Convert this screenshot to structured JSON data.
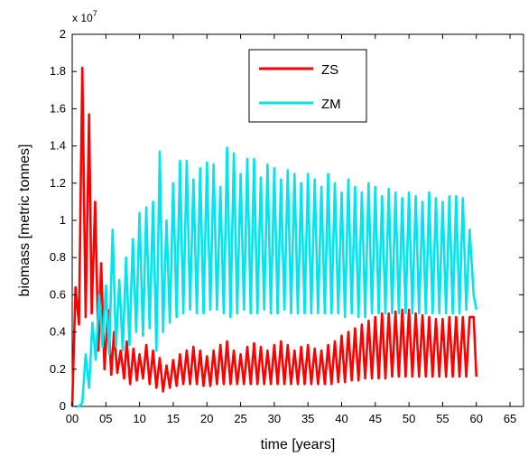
{
  "chart_data": {
    "type": "line",
    "xlabel": "time [years]",
    "ylabel": "biomass [metric tonnes]",
    "y_multiplier": "x 10",
    "y_multiplier_exp": "7",
    "xlim": [
      0,
      67
    ],
    "ylim": [
      0,
      2
    ],
    "x_ticks": [
      0,
      5,
      10,
      15,
      20,
      25,
      30,
      35,
      40,
      45,
      50,
      55,
      60,
      65
    ],
    "x_tick_labels": [
      "00",
      "05",
      "10",
      "15",
      "20",
      "25",
      "30",
      "35",
      "40",
      "45",
      "50",
      "55",
      "60",
      "65"
    ],
    "y_ticks": [
      0,
      0.2,
      0.4,
      0.6,
      0.8,
      1,
      1.2,
      1.4,
      1.6,
      1.8,
      2
    ],
    "y_tick_labels": [
      "0",
      "0.2",
      "0.4",
      "0.6",
      "0.8",
      "1",
      "1.2",
      "1.4",
      "1.6",
      "1.8",
      "2"
    ],
    "legend_position": "top-center",
    "grid": false,
    "series": [
      {
        "name": "ZS",
        "color": "#ff0000",
        "peaks": [
          [
            0.5,
            0.64
          ],
          [
            1.5,
            1.82
          ],
          [
            2.5,
            1.57
          ],
          [
            3.4,
            1.1
          ],
          [
            4.3,
            0.77
          ],
          [
            5.3,
            0.52
          ],
          [
            6.2,
            0.4
          ],
          [
            7.2,
            0.3
          ],
          [
            8.1,
            0.35
          ],
          [
            9.1,
            0.31
          ],
          [
            10,
            0.28
          ],
          [
            11,
            0.33
          ],
          [
            12,
            0.3
          ],
          [
            13,
            0.26
          ],
          [
            14,
            0.22
          ],
          [
            15,
            0.25
          ],
          [
            16,
            0.28
          ],
          [
            17,
            0.3
          ],
          [
            18,
            0.32
          ],
          [
            19,
            0.3
          ],
          [
            20,
            0.27
          ],
          [
            21,
            0.3
          ],
          [
            22,
            0.33
          ],
          [
            23,
            0.35
          ],
          [
            24,
            0.3
          ],
          [
            25,
            0.28
          ],
          [
            26,
            0.32
          ],
          [
            27,
            0.34
          ],
          [
            28,
            0.32
          ],
          [
            29,
            0.3
          ],
          [
            30,
            0.33
          ],
          [
            31,
            0.35
          ],
          [
            32,
            0.33
          ],
          [
            33,
            0.3
          ],
          [
            34,
            0.32
          ],
          [
            35,
            0.33
          ],
          [
            36,
            0.31
          ],
          [
            37,
            0.3
          ],
          [
            38,
            0.33
          ],
          [
            39,
            0.35
          ],
          [
            40,
            0.38
          ],
          [
            41,
            0.4
          ],
          [
            42,
            0.42
          ],
          [
            43,
            0.44
          ],
          [
            44,
            0.46
          ],
          [
            45,
            0.48
          ],
          [
            46,
            0.5
          ],
          [
            47,
            0.5
          ],
          [
            48,
            0.51
          ],
          [
            49,
            0.52
          ],
          [
            50,
            0.52
          ],
          [
            51,
            0.5
          ],
          [
            52,
            0.49
          ],
          [
            53,
            0.48
          ],
          [
            54,
            0.47
          ],
          [
            55,
            0.47
          ],
          [
            56,
            0.48
          ],
          [
            57,
            0.48
          ],
          [
            58,
            0.48
          ],
          [
            59,
            0.48
          ],
          [
            59.6,
            0.48
          ]
        ],
        "troughs": [
          [
            0,
            0
          ],
          [
            1,
            0.44
          ],
          [
            2,
            0.48
          ],
          [
            2.9,
            0.5
          ],
          [
            3.9,
            0.3
          ],
          [
            4.8,
            0.2
          ],
          [
            5.8,
            0.17
          ],
          [
            6.7,
            0.18
          ],
          [
            7.7,
            0.15
          ],
          [
            8.6,
            0.12
          ],
          [
            9.6,
            0.14
          ],
          [
            10.5,
            0.15
          ],
          [
            11.5,
            0.12
          ],
          [
            12.5,
            0.1
          ],
          [
            13.5,
            0.08
          ],
          [
            14.5,
            0.1
          ],
          [
            15.5,
            0.11
          ],
          [
            16.5,
            0.12
          ],
          [
            17.5,
            0.12
          ],
          [
            18.5,
            0.12
          ],
          [
            19.5,
            0.11
          ],
          [
            20.5,
            0.11
          ],
          [
            21.5,
            0.12
          ],
          [
            22.5,
            0.12
          ],
          [
            23.5,
            0.12
          ],
          [
            24.5,
            0.12
          ],
          [
            25.5,
            0.12
          ],
          [
            26.5,
            0.12
          ],
          [
            27.5,
            0.12
          ],
          [
            28.5,
            0.12
          ],
          [
            29.5,
            0.12
          ],
          [
            30.5,
            0.12
          ],
          [
            31.5,
            0.12
          ],
          [
            32.5,
            0.12
          ],
          [
            33.5,
            0.12
          ],
          [
            34.5,
            0.12
          ],
          [
            35.5,
            0.12
          ],
          [
            36.5,
            0.12
          ],
          [
            37.5,
            0.12
          ],
          [
            38.5,
            0.12
          ],
          [
            39.5,
            0.13
          ],
          [
            40.5,
            0.13
          ],
          [
            41.5,
            0.14
          ],
          [
            42.5,
            0.14
          ],
          [
            43.5,
            0.15
          ],
          [
            44.5,
            0.15
          ],
          [
            45.5,
            0.15
          ],
          [
            46.5,
            0.15
          ],
          [
            47.5,
            0.16
          ],
          [
            48.5,
            0.16
          ],
          [
            49.5,
            0.16
          ],
          [
            50.5,
            0.16
          ],
          [
            51.5,
            0.16
          ],
          [
            52.5,
            0.16
          ],
          [
            53.5,
            0.16
          ],
          [
            54.5,
            0.16
          ],
          [
            55.5,
            0.16
          ],
          [
            56.5,
            0.16
          ],
          [
            57.5,
            0.16
          ],
          [
            58.5,
            0.16
          ],
          [
            60,
            0.16
          ]
        ]
      },
      {
        "name": "ZM",
        "color": "#00e5ee",
        "peaks": [
          [
            1,
            0
          ],
          [
            2,
            0.28
          ],
          [
            3,
            0.45
          ],
          [
            4,
            0.6
          ],
          [
            5,
            0.65
          ],
          [
            6,
            0.95
          ],
          [
            7,
            0.68
          ],
          [
            8,
            0.8
          ],
          [
            9,
            0.9
          ],
          [
            10,
            1.04
          ],
          [
            11,
            1.07
          ],
          [
            12,
            1.1
          ],
          [
            13,
            1.37
          ],
          [
            14,
            1.0
          ],
          [
            15,
            1.2
          ],
          [
            16,
            1.32
          ],
          [
            17,
            1.32
          ],
          [
            18,
            1.22
          ],
          [
            19,
            1.28
          ],
          [
            20,
            1.31
          ],
          [
            21,
            1.3
          ],
          [
            22,
            1.18
          ],
          [
            23,
            1.39
          ],
          [
            24,
            1.36
          ],
          [
            25,
            1.25
          ],
          [
            26,
            1.33
          ],
          [
            27,
            1.33
          ],
          [
            28,
            1.23
          ],
          [
            29,
            1.3
          ],
          [
            30,
            1.28
          ],
          [
            31,
            1.22
          ],
          [
            32,
            1.27
          ],
          [
            33,
            1.25
          ],
          [
            34,
            1.2
          ],
          [
            35,
            1.25
          ],
          [
            36,
            1.22
          ],
          [
            37,
            1.18
          ],
          [
            38,
            1.25
          ],
          [
            39,
            1.2
          ],
          [
            40,
            1.15
          ],
          [
            41,
            1.22
          ],
          [
            42,
            1.18
          ],
          [
            43,
            1.15
          ],
          [
            44,
            1.2
          ],
          [
            45,
            1.18
          ],
          [
            46,
            1.13
          ],
          [
            47,
            1.17
          ],
          [
            48,
            1.15
          ],
          [
            49,
            1.12
          ],
          [
            50,
            1.15
          ],
          [
            51,
            1.13
          ],
          [
            52,
            1.1
          ],
          [
            53,
            1.15
          ],
          [
            54,
            1.12
          ],
          [
            55,
            1.1
          ],
          [
            56,
            1.13
          ],
          [
            57,
            1.13
          ],
          [
            58,
            1.12
          ],
          [
            59,
            0.95
          ],
          [
            59.6,
            0.6
          ]
        ],
        "troughs": [
          [
            0.5,
            0
          ],
          [
            1.5,
            0.02
          ],
          [
            2.5,
            0.1
          ],
          [
            3.5,
            0.25
          ],
          [
            4.5,
            0.32
          ],
          [
            5.5,
            0.28
          ],
          [
            6.5,
            0.32
          ],
          [
            7.5,
            0.3
          ],
          [
            8.5,
            0.33
          ],
          [
            9.5,
            0.4
          ],
          [
            10.5,
            0.38
          ],
          [
            11.5,
            0.42
          ],
          [
            12.5,
            0.3
          ],
          [
            13.5,
            0.4
          ],
          [
            14.5,
            0.45
          ],
          [
            15.5,
            0.48
          ],
          [
            16.5,
            0.5
          ],
          [
            17.5,
            0.52
          ],
          [
            18.5,
            0.5
          ],
          [
            19.5,
            0.5
          ],
          [
            20.5,
            0.52
          ],
          [
            21.5,
            0.52
          ],
          [
            22.5,
            0.5
          ],
          [
            23.5,
            0.48
          ],
          [
            24.5,
            0.5
          ],
          [
            25.5,
            0.52
          ],
          [
            26.5,
            0.5
          ],
          [
            27.5,
            0.5
          ],
          [
            28.5,
            0.52
          ],
          [
            29.5,
            0.5
          ],
          [
            30.5,
            0.5
          ],
          [
            31.5,
            0.52
          ],
          [
            32.5,
            0.5
          ],
          [
            33.5,
            0.5
          ],
          [
            34.5,
            0.5
          ],
          [
            35.5,
            0.5
          ],
          [
            36.5,
            0.5
          ],
          [
            37.5,
            0.5
          ],
          [
            38.5,
            0.5
          ],
          [
            39.5,
            0.5
          ],
          [
            40.5,
            0.48
          ],
          [
            41.5,
            0.5
          ],
          [
            42.5,
            0.48
          ],
          [
            43.5,
            0.48
          ],
          [
            44.5,
            0.5
          ],
          [
            45.5,
            0.5
          ],
          [
            46.5,
            0.5
          ],
          [
            47.5,
            0.5
          ],
          [
            48.5,
            0.5
          ],
          [
            49.5,
            0.5
          ],
          [
            50.5,
            0.5
          ],
          [
            51.5,
            0.5
          ],
          [
            52.5,
            0.5
          ],
          [
            53.5,
            0.5
          ],
          [
            54.5,
            0.5
          ],
          [
            55.5,
            0.5
          ],
          [
            56.5,
            0.5
          ],
          [
            57.5,
            0.5
          ],
          [
            58.5,
            0.52
          ],
          [
            60,
            0.52
          ]
        ]
      }
    ]
  }
}
